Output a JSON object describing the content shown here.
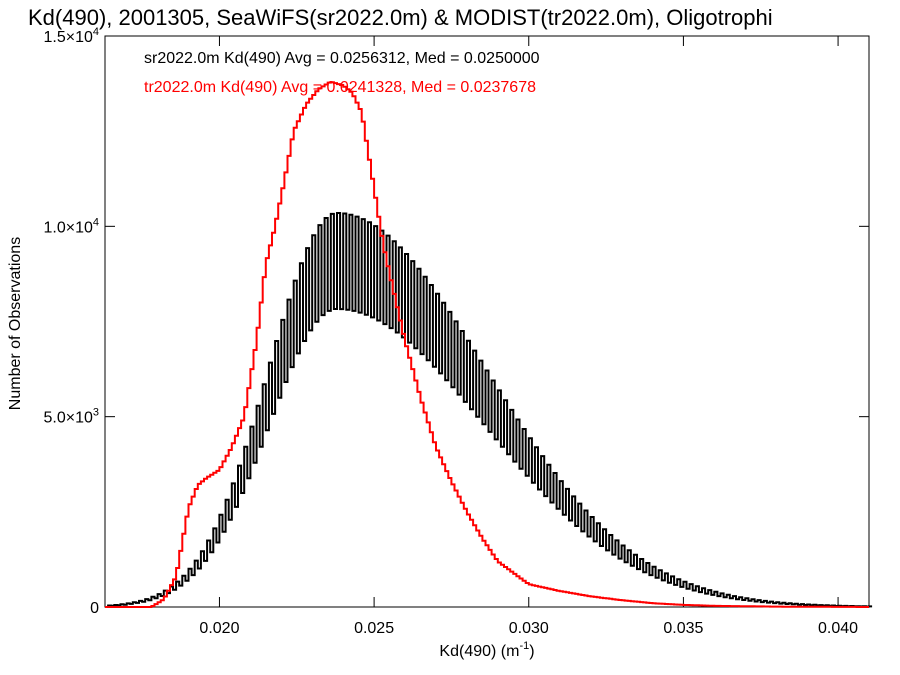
{
  "chart_data": {
    "type": "line",
    "title": "Kd(490), 2001305, SeaWiFS(sr2022.0m) & MODIST(tr2022.0m), Oligotrophi",
    "xlabel": "Kd(490) (m",
    "xlabel_sup": "-1",
    "xlabel_close": ")",
    "ylabel": "Number of Observations",
    "xlim": [
      0.0163,
      0.041
    ],
    "ylim": [
      0,
      15000
    ],
    "x_ticks": [
      {
        "value": 0.02,
        "label": "0.020"
      },
      {
        "value": 0.025,
        "label": "0.025"
      },
      {
        "value": 0.03,
        "label": "0.030"
      },
      {
        "value": 0.035,
        "label": "0.035"
      },
      {
        "value": 0.04,
        "label": "0.040"
      }
    ],
    "y_ticks": [
      {
        "value": 0,
        "base": "0",
        "exp": ""
      },
      {
        "value": 5000,
        "base": "5.0×10",
        "exp": "3"
      },
      {
        "value": 10000,
        "base": "1.0×10",
        "exp": "4"
      },
      {
        "value": 15000,
        "base": "1.5×10",
        "exp": "4"
      }
    ],
    "annotations": [
      {
        "text": "sr2022.0m Kd(490) Avg = 0.0256312, Med = 0.0250000",
        "color": "#000000"
      },
      {
        "text": "tr2022.0m Kd(490) Avg = 0.0241328, Med = 0.0237678",
        "color": "#ff0000"
      }
    ],
    "bin_width": 0.0001,
    "series": [
      {
        "color": "#000000",
        "style": "alternating-step",
        "x_start": 0.0164,
        "x_end": 0.041,
        "peak_x": 0.0238,
        "peak": 9000,
        "sigma_left": 0.0022,
        "sigma_right": 0.0048,
        "amp_low": 0.13,
        "amp_high": 0.15
      },
      {
        "color": "#ff0000",
        "style": "step",
        "points": [
          [
            0.0163,
            0
          ],
          [
            0.0178,
            0
          ],
          [
            0.0182,
            200
          ],
          [
            0.0186,
            800
          ],
          [
            0.019,
            2600
          ],
          [
            0.0193,
            3200
          ],
          [
            0.0196,
            3400
          ],
          [
            0.02,
            3600
          ],
          [
            0.0204,
            4200
          ],
          [
            0.0208,
            5000
          ],
          [
            0.0212,
            7000
          ],
          [
            0.0215,
            9000
          ],
          [
            0.0218,
            10000
          ],
          [
            0.0221,
            11200
          ],
          [
            0.0224,
            12500
          ],
          [
            0.0228,
            13200
          ],
          [
            0.0232,
            13600
          ],
          [
            0.0236,
            13800
          ],
          [
            0.024,
            13700
          ],
          [
            0.0243,
            13500
          ],
          [
            0.0246,
            13000
          ],
          [
            0.025,
            11000
          ],
          [
            0.0253,
            9500
          ],
          [
            0.0256,
            8400
          ],
          [
            0.026,
            7000
          ],
          [
            0.0265,
            5500
          ],
          [
            0.027,
            4200
          ],
          [
            0.0275,
            3300
          ],
          [
            0.028,
            2500
          ],
          [
            0.0285,
            1800
          ],
          [
            0.029,
            1200
          ],
          [
            0.0295,
            900
          ],
          [
            0.03,
            600
          ],
          [
            0.031,
            420
          ],
          [
            0.032,
            280
          ],
          [
            0.033,
            180
          ],
          [
            0.034,
            100
          ],
          [
            0.035,
            55
          ],
          [
            0.036,
            30
          ],
          [
            0.038,
            10
          ],
          [
            0.041,
            0
          ]
        ]
      }
    ]
  }
}
